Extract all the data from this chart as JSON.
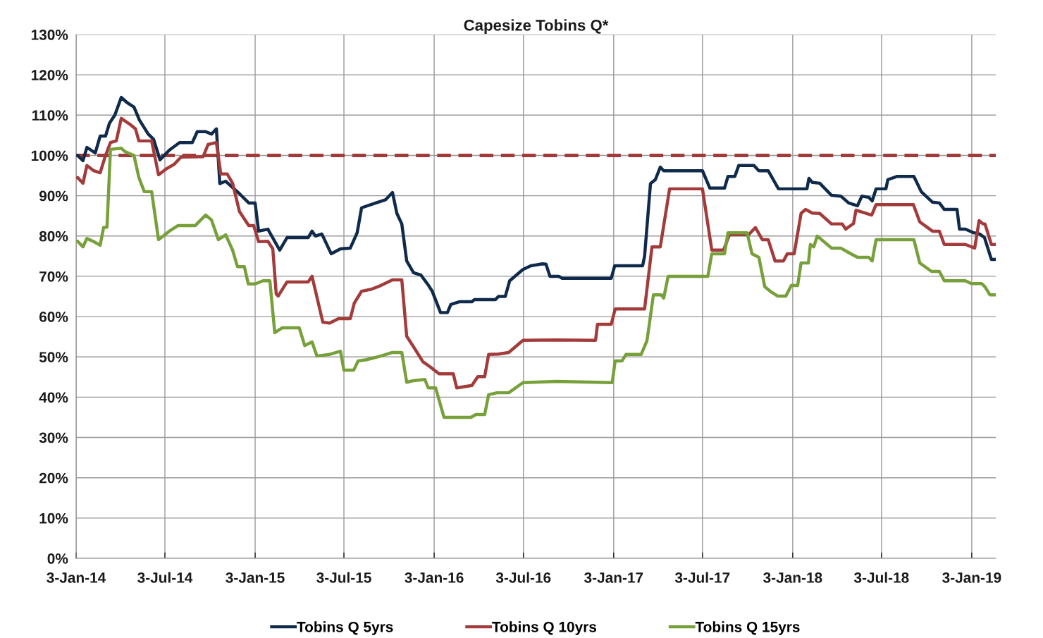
{
  "chart_data": {
    "type": "line",
    "title": "Capesize Tobins Q*",
    "xlim": [
      "2014-01-03",
      "2019-02-21"
    ],
    "xticks": [
      {
        "value": "2014-01-03",
        "label": "3-Jan-14"
      },
      {
        "value": "2014-07-03",
        "label": "3-Jul-14"
      },
      {
        "value": "2015-01-03",
        "label": "3-Jan-15"
      },
      {
        "value": "2015-07-03",
        "label": "3-Jul-15"
      },
      {
        "value": "2016-01-03",
        "label": "3-Jan-16"
      },
      {
        "value": "2016-07-03",
        "label": "3-Jul-16"
      },
      {
        "value": "2017-01-03",
        "label": "3-Jan-17"
      },
      {
        "value": "2017-07-03",
        "label": "3-Jul-17"
      },
      {
        "value": "2018-01-03",
        "label": "3-Jan-18"
      },
      {
        "value": "2018-07-03",
        "label": "3-Jul-18"
      },
      {
        "value": "2019-01-03",
        "label": "3-Jan-19"
      }
    ],
    "ylim": [
      0,
      130
    ],
    "yticks": [
      {
        "value": 0,
        "label": "0%"
      },
      {
        "value": 10,
        "label": "10%"
      },
      {
        "value": 20,
        "label": "20%"
      },
      {
        "value": 30,
        "label": "30%"
      },
      {
        "value": 40,
        "label": "40%"
      },
      {
        "value": 50,
        "label": "50%"
      },
      {
        "value": 60,
        "label": "60%"
      },
      {
        "value": 70,
        "label": "70%"
      },
      {
        "value": 80,
        "label": "80%"
      },
      {
        "value": 90,
        "label": "90%"
      },
      {
        "value": 100,
        "label": "100%"
      },
      {
        "value": 110,
        "label": "110%"
      },
      {
        "value": 120,
        "label": "120%"
      },
      {
        "value": 130,
        "label": "130%"
      }
    ],
    "grid": true,
    "legend": "bottom",
    "marker": "none",
    "line_style": "solid",
    "ref_lines": [
      {
        "axis": "y",
        "value": 100,
        "label": null,
        "color": "#a33a3a",
        "line_style": "dashed"
      }
    ],
    "series": [
      {
        "name": "Tobins Q 5yrs",
        "color": "#0f2a4a",
        "x": [
          "2014-01-06",
          "2014-01-17",
          "2014-01-25",
          "2014-02-11",
          "2014-02-21",
          "2014-03-04",
          "2014-03-12",
          "2014-03-23",
          "2014-04-05",
          "2014-04-16",
          "2014-05-01",
          "2014-05-12",
          "2014-05-30",
          "2014-06-10",
          "2014-06-23",
          "2014-07-12",
          "2014-08-02",
          "2014-08-28",
          "2014-09-07",
          "2014-09-24",
          "2014-10-06",
          "2014-10-16",
          "2014-10-23",
          "2014-11-04",
          "2014-12-02",
          "2014-12-21",
          "2015-01-03",
          "2015-01-10",
          "2015-01-29",
          "2015-02-22",
          "2015-03-09",
          "2015-04-21",
          "2015-04-29",
          "2015-05-06",
          "2015-05-19",
          "2015-06-07",
          "2015-06-26",
          "2015-07-16",
          "2015-07-30",
          "2015-08-08",
          "2015-09-06",
          "2015-09-26",
          "2015-10-10",
          "2015-10-19",
          "2015-10-29",
          "2015-11-08",
          "2015-11-22",
          "2015-12-07",
          "2015-12-21",
          "2015-12-30",
          "2016-01-16",
          "2016-01-30",
          "2016-02-06",
          "2016-02-24",
          "2016-03-20",
          "2016-03-25",
          "2016-05-07",
          "2016-05-13",
          "2016-05-27",
          "2016-06-05",
          "2016-07-02",
          "2016-07-18",
          "2016-08-11",
          "2016-08-18",
          "2016-08-26",
          "2016-09-13",
          "2016-09-20",
          "2016-12-29",
          "2017-01-05",
          "2017-03-03",
          "2017-03-07",
          "2017-03-19",
          "2017-03-29",
          "2017-04-08",
          "2017-04-15",
          "2017-07-03",
          "2017-07-18",
          "2017-08-17",
          "2017-08-24",
          "2017-09-07",
          "2017-09-15",
          "2017-10-16",
          "2017-10-26",
          "2017-11-14",
          "2017-12-05",
          "2018-02-01",
          "2018-02-05",
          "2018-02-12",
          "2018-02-27",
          "2018-03-23",
          "2018-04-11",
          "2018-04-27",
          "2018-05-15",
          "2018-05-24",
          "2018-06-07",
          "2018-06-14",
          "2018-06-22",
          "2018-07-12",
          "2018-07-16",
          "2018-08-04",
          "2018-09-07",
          "2018-09-22",
          "2018-10-15",
          "2018-10-29",
          "2018-11-08",
          "2018-12-04",
          "2018-12-09",
          "2018-12-21",
          "2019-01-07",
          "2019-01-19",
          "2019-01-29",
          "2019-02-12",
          "2019-02-21"
        ],
        "values": [
          100,
          98.7,
          102,
          100.6,
          104.8,
          104.8,
          108,
          110,
          114.4,
          113.2,
          112,
          108.8,
          105.3,
          104,
          98.9,
          101.3,
          103.2,
          103.2,
          105.9,
          105.9,
          105.3,
          106.6,
          93,
          93.6,
          90.5,
          88.2,
          88.2,
          81.2,
          81.7,
          76.5,
          79.6,
          79.6,
          81.2,
          80,
          80.5,
          75.6,
          76.8,
          77,
          80.8,
          87,
          88.2,
          89,
          90.8,
          85.6,
          83,
          73.8,
          70.9,
          70.3,
          68,
          66.3,
          61,
          61,
          63,
          63.7,
          63.7,
          64.2,
          64.2,
          65,
          65,
          68.9,
          71.7,
          72.6,
          73.1,
          73,
          70,
          70,
          69.5,
          69.5,
          72.6,
          72.6,
          75,
          93,
          94,
          97.1,
          96.2,
          96.2,
          91.9,
          91.9,
          94.8,
          94.8,
          97.5,
          97.5,
          96.2,
          96.2,
          91.7,
          91.7,
          94.3,
          93.3,
          93.1,
          90.1,
          89.9,
          88.2,
          87.5,
          89.9,
          89.6,
          88.7,
          91.7,
          91.7,
          94,
          94.8,
          94.8,
          91,
          88.4,
          88.2,
          86.6,
          86.6,
          81.7,
          81.7,
          80.8,
          80.5,
          79.6,
          74.2,
          74.2
        ]
      },
      {
        "name": "Tobins Q 10yrs",
        "color": "#a33b3b",
        "x": [
          "2014-01-06",
          "2014-01-17",
          "2014-01-25",
          "2014-02-08",
          "2014-02-21",
          "2014-03-04",
          "2014-03-14",
          "2014-03-26",
          "2014-04-05",
          "2014-04-24",
          "2014-05-04",
          "2014-05-11",
          "2014-06-06",
          "2014-06-20",
          "2014-07-05",
          "2014-07-22",
          "2014-08-05",
          "2014-09-19",
          "2014-09-29",
          "2014-10-16",
          "2014-10-25",
          "2014-11-07",
          "2014-11-18",
          "2014-12-02",
          "2014-12-21",
          "2014-12-31",
          "2015-01-10",
          "2015-01-29",
          "2015-02-08",
          "2015-02-15",
          "2015-02-19",
          "2015-03-09",
          "2015-04-21",
          "2015-04-29",
          "2015-05-21",
          "2015-06-04",
          "2015-06-22",
          "2015-07-16",
          "2015-07-24",
          "2015-08-08",
          "2015-08-28",
          "2015-09-16",
          "2015-10-10",
          "2015-10-29",
          "2015-11-08",
          "2015-11-22",
          "2015-12-11",
          "2015-12-25",
          "2016-01-13",
          "2016-02-11",
          "2016-02-18",
          "2016-03-20",
          "2016-04-01",
          "2016-04-15",
          "2016-04-23",
          "2016-05-13",
          "2016-06-03",
          "2016-07-02",
          "2016-09-09",
          "2016-11-27",
          "2016-12-01",
          "2016-12-29",
          "2017-01-06",
          "2017-03-07",
          "2017-03-22",
          "2017-04-08",
          "2017-04-27",
          "2017-07-03",
          "2017-07-22",
          "2017-08-15",
          "2017-08-27",
          "2017-10-05",
          "2017-10-19",
          "2017-11-02",
          "2017-11-14",
          "2017-11-28",
          "2017-12-15",
          "2017-12-23",
          "2018-01-06",
          "2018-01-20",
          "2018-01-29",
          "2018-02-12",
          "2018-02-27",
          "2018-03-23",
          "2018-04-14",
          "2018-04-21",
          "2018-05-07",
          "2018-05-12",
          "2018-06-13",
          "2018-06-22",
          "2018-09-06",
          "2018-09-19",
          "2018-10-15",
          "2018-10-29",
          "2018-11-08",
          "2018-12-21",
          "2019-01-09",
          "2019-01-18",
          "2019-01-26",
          "2019-01-30",
          "2019-02-12",
          "2019-02-21"
        ],
        "values": [
          94.5,
          93.1,
          97.5,
          96.2,
          95.7,
          100,
          103.2,
          103.6,
          109.2,
          107.6,
          106.6,
          103.6,
          103.6,
          95.2,
          96.6,
          97.8,
          99.6,
          99.7,
          102.7,
          103.2,
          95.4,
          95.4,
          93.1,
          86.1,
          82.6,
          82.6,
          78.6,
          78.7,
          76.8,
          65.6,
          65.1,
          68.6,
          68.6,
          70,
          58.6,
          58.4,
          59.5,
          59.5,
          63.3,
          66.3,
          66.8,
          67.7,
          69.1,
          69.1,
          55.1,
          52.5,
          48.8,
          47.6,
          45.8,
          45.8,
          42.3,
          42.9,
          45.1,
          45.1,
          50.6,
          50.7,
          51.1,
          54.1,
          54.2,
          54.1,
          58.1,
          58.1,
          61.9,
          61.9,
          77.3,
          77.3,
          91.7,
          91.7,
          76.5,
          76.5,
          80.3,
          80.3,
          82.1,
          79.1,
          79.1,
          73.8,
          73.8,
          75.6,
          75.6,
          85.6,
          86.6,
          85.7,
          85.6,
          83,
          83,
          81.7,
          83.1,
          86.4,
          85.2,
          87.8,
          87.8,
          83.5,
          81.2,
          81.2,
          77.9,
          77.9,
          77,
          83.8,
          83,
          83,
          77.9,
          77.9
        ]
      },
      {
        "name": "Tobins Q 15yrs",
        "color": "#77a03a",
        "x": [
          "2014-01-06",
          "2014-01-17",
          "2014-01-25",
          "2014-02-08",
          "2014-02-21",
          "2014-02-28",
          "2014-03-07",
          "2014-03-14",
          "2014-04-05",
          "2014-04-12",
          "2014-05-01",
          "2014-05-11",
          "2014-05-22",
          "2014-06-06",
          "2014-06-20",
          "2014-07-12",
          "2014-07-30",
          "2014-09-03",
          "2014-09-24",
          "2014-10-06",
          "2014-10-20",
          "2014-11-04",
          "2014-11-18",
          "2014-11-28",
          "2014-12-12",
          "2014-12-20",
          "2015-01-03",
          "2015-01-19",
          "2015-02-02",
          "2015-02-12",
          "2015-02-27",
          "2015-04-03",
          "2015-04-14",
          "2015-04-29",
          "2015-05-09",
          "2015-06-03",
          "2015-06-26",
          "2015-07-03",
          "2015-07-23",
          "2015-08-01",
          "2015-08-18",
          "2015-09-16",
          "2015-10-10",
          "2015-10-29",
          "2015-11-08",
          "2015-11-22",
          "2015-12-15",
          "2015-12-22",
          "2016-01-06",
          "2016-01-23",
          "2016-03-18",
          "2016-03-28",
          "2016-04-15",
          "2016-04-23",
          "2016-05-10",
          "2016-06-03",
          "2016-07-02",
          "2016-09-09",
          "2016-12-31",
          "2017-01-06",
          "2017-01-20",
          "2017-01-28",
          "2017-02-28",
          "2017-03-12",
          "2017-03-25",
          "2017-04-10",
          "2017-04-15",
          "2017-04-24",
          "2017-07-14",
          "2017-07-22",
          "2017-08-17",
          "2017-08-24",
          "2017-10-02",
          "2017-10-12",
          "2017-10-26",
          "2017-11-07",
          "2017-11-18",
          "2017-12-03",
          "2017-12-20",
          "2017-12-31",
          "2018-01-13",
          "2018-01-20",
          "2018-02-04",
          "2018-02-08",
          "2018-02-15",
          "2018-02-22",
          "2018-03-23",
          "2018-04-11",
          "2018-04-27",
          "2018-05-15",
          "2018-06-07",
          "2018-06-14",
          "2018-06-22",
          "2018-09-07",
          "2018-09-19",
          "2018-10-13",
          "2018-10-29",
          "2018-11-08",
          "2018-12-21",
          "2019-01-02",
          "2019-01-23",
          "2019-01-30",
          "2019-02-09",
          "2019-02-21"
        ],
        "values": [
          78.7,
          77.3,
          79.4,
          78.6,
          77.7,
          82.1,
          82.2,
          101.5,
          101.8,
          101,
          100,
          94.5,
          91,
          91,
          79.1,
          81.2,
          82.6,
          82.6,
          85.2,
          84,
          79.1,
          80.3,
          76.5,
          72.4,
          72.4,
          68.1,
          68.1,
          68.9,
          68.9,
          56,
          57.2,
          57.2,
          52.8,
          53.7,
          50.2,
          50.6,
          51.4,
          46.7,
          46.7,
          49,
          49.3,
          50.2,
          51.1,
          51.1,
          43.7,
          44.1,
          44.4,
          42.3,
          42.3,
          35,
          35,
          35.7,
          35.7,
          40.6,
          41.1,
          41.1,
          43.6,
          43.9,
          43.6,
          49,
          49,
          50.6,
          50.6,
          54.1,
          65.4,
          65.4,
          64.6,
          70,
          70,
          75.6,
          75.6,
          80.8,
          80.8,
          75.6,
          74.7,
          67.4,
          66.3,
          65.1,
          65.1,
          67.7,
          67.7,
          73.3,
          73.3,
          77.9,
          77.3,
          80,
          77,
          77,
          75.9,
          74.7,
          74.7,
          73.8,
          79.1,
          79.1,
          73.3,
          71.2,
          71.2,
          68.9,
          68.9,
          68.2,
          68.2,
          67.4,
          65.4,
          65.4
        ]
      }
    ]
  }
}
